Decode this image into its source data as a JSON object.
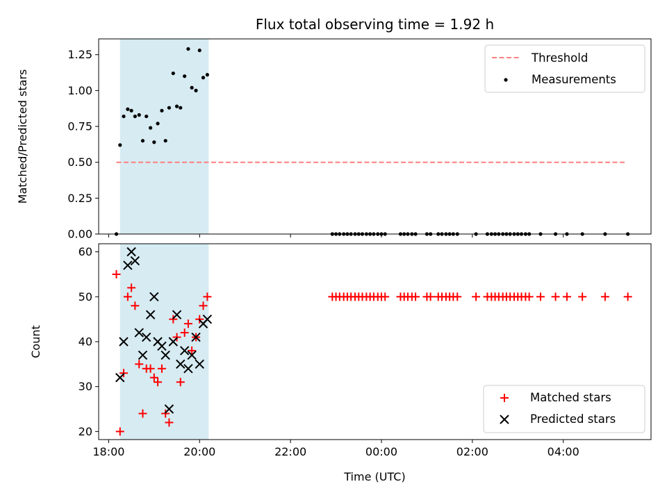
{
  "chart_data": [
    {
      "type": "scatter",
      "title": "Flux total observing time = 1.92 h",
      "xlabel": "",
      "ylabel": "Matched/Predicted stars",
      "xlim": [
        17.78,
        29.93
      ],
      "ylim": [
        0,
        1.36
      ],
      "yticks": [
        0.0,
        0.25,
        0.5,
        0.75,
        1.0,
        1.25
      ],
      "ytick_labels": [
        "0.00",
        "0.25",
        "0.50",
        "0.75",
        "1.00",
        "1.25"
      ],
      "xticks": [
        18,
        20,
        22,
        24,
        26,
        28
      ],
      "shaded_region": {
        "x": [
          18.25,
          20.2
        ],
        "color": "#add8e6"
      },
      "threshold": {
        "name": "Threshold",
        "value": 0.5,
        "x": [
          18.17,
          29.4
        ],
        "color": "#ff7f7f"
      },
      "legend": {
        "placement": "upper right",
        "entries": [
          "Threshold",
          "Measurements"
        ]
      },
      "series": [
        {
          "name": "Measurements",
          "marker": "dot",
          "color": "#000000",
          "x": [
            18.17,
            18.25,
            18.33,
            18.42,
            18.5,
            18.58,
            18.67,
            18.75,
            18.83,
            18.92,
            19.0,
            19.08,
            19.17,
            19.25,
            19.33,
            19.42,
            19.5,
            19.58,
            19.67,
            19.75,
            19.83,
            19.92,
            20.0,
            20.08,
            20.17,
            22.92,
            23.0,
            23.08,
            23.17,
            23.25,
            23.33,
            23.42,
            23.5,
            23.58,
            23.67,
            23.75,
            23.83,
            23.92,
            24.0,
            24.08,
            24.42,
            24.5,
            24.58,
            24.67,
            24.75,
            25.0,
            25.08,
            25.25,
            25.33,
            25.42,
            25.5,
            25.58,
            25.67,
            26.08,
            26.33,
            26.42,
            26.5,
            26.58,
            26.67,
            26.75,
            26.83,
            26.92,
            27.0,
            27.08,
            27.17,
            27.25,
            27.5,
            27.83,
            28.08,
            28.42,
            28.92,
            29.42
          ],
          "y": [
            0,
            0.62,
            0.82,
            0.87,
            0.86,
            0.82,
            0.83,
            0.65,
            0.82,
            0.74,
            0.64,
            0.77,
            0.86,
            0.65,
            0.88,
            1.12,
            0.89,
            0.88,
            1.1,
            1.29,
            1.02,
            1.0,
            1.28,
            1.09,
            1.11,
            0,
            0,
            0,
            0,
            0,
            0,
            0,
            0,
            0,
            0,
            0,
            0,
            0,
            0,
            0,
            0,
            0,
            0,
            0,
            0,
            0,
            0,
            0,
            0,
            0,
            0,
            0,
            0,
            0,
            0,
            0,
            0,
            0,
            0,
            0,
            0,
            0,
            0,
            0,
            0,
            0,
            0,
            0,
            0,
            0,
            0,
            0
          ]
        }
      ]
    },
    {
      "type": "scatter",
      "title": "",
      "xlabel": "Time (UTC)",
      "ylabel": "Count",
      "xlim": [
        17.78,
        29.93
      ],
      "ylim": [
        18.2,
        61.8
      ],
      "yticks": [
        20,
        30,
        40,
        50,
        60
      ],
      "ytick_labels": [
        "20",
        "30",
        "40",
        "50",
        "60"
      ],
      "xticks": [
        18,
        20,
        22,
        24,
        26,
        28
      ],
      "xtick_labels": [
        "18:00",
        "20:00",
        "22:00",
        "00:00",
        "02:00",
        "04:00"
      ],
      "shaded_region": {
        "x": [
          18.25,
          20.2
        ],
        "color": "#add8e6"
      },
      "legend": {
        "placement": "lower right",
        "entries": [
          "Matched stars",
          "Predicted stars"
        ]
      },
      "series": [
        {
          "name": "Matched stars",
          "marker": "plus",
          "color": "#ff0000",
          "x": [
            18.17,
            18.25,
            18.33,
            18.42,
            18.5,
            18.58,
            18.67,
            18.75,
            18.83,
            18.92,
            19.0,
            19.08,
            19.17,
            19.25,
            19.33,
            19.42,
            19.5,
            19.58,
            19.67,
            19.75,
            19.83,
            19.92,
            20.0,
            20.08,
            20.17,
            22.92,
            23.0,
            23.08,
            23.17,
            23.25,
            23.33,
            23.42,
            23.5,
            23.58,
            23.67,
            23.75,
            23.83,
            23.92,
            24.0,
            24.08,
            24.42,
            24.5,
            24.58,
            24.67,
            24.75,
            25.0,
            25.08,
            25.25,
            25.33,
            25.42,
            25.5,
            25.58,
            25.67,
            26.08,
            26.33,
            26.42,
            26.5,
            26.58,
            26.67,
            26.75,
            26.83,
            26.92,
            27.0,
            27.08,
            27.17,
            27.25,
            27.5,
            27.83,
            28.08,
            28.42,
            28.92,
            29.42
          ],
          "y": [
            55,
            20,
            33,
            50,
            52,
            48,
            35,
            24,
            34,
            34,
            32,
            31,
            34,
            24,
            22,
            45,
            41,
            31,
            42,
            44,
            38,
            41,
            45,
            48,
            50,
            50,
            50,
            50,
            50,
            50,
            50,
            50,
            50,
            50,
            50,
            50,
            50,
            50,
            50,
            50,
            50,
            50,
            50,
            50,
            50,
            50,
            50,
            50,
            50,
            50,
            50,
            50,
            50,
            50,
            50,
            50,
            50,
            50,
            50,
            50,
            50,
            50,
            50,
            50,
            50,
            50,
            50,
            50,
            50,
            50,
            50,
            50
          ]
        },
        {
          "name": "Predicted stars",
          "marker": "x",
          "color": "#000000",
          "x": [
            18.25,
            18.33,
            18.42,
            18.5,
            18.58,
            18.67,
            18.75,
            18.83,
            18.92,
            19.0,
            19.08,
            19.17,
            19.25,
            19.33,
            19.42,
            19.5,
            19.58,
            19.67,
            19.75,
            19.83,
            19.92,
            20.0,
            20.08,
            20.17
          ],
          "y": [
            32,
            40,
            57,
            60,
            58,
            42,
            37,
            41,
            46,
            50,
            40,
            39,
            37,
            25,
            40,
            46,
            35,
            38,
            34,
            37,
            41,
            35,
            44,
            45
          ]
        }
      ]
    }
  ]
}
